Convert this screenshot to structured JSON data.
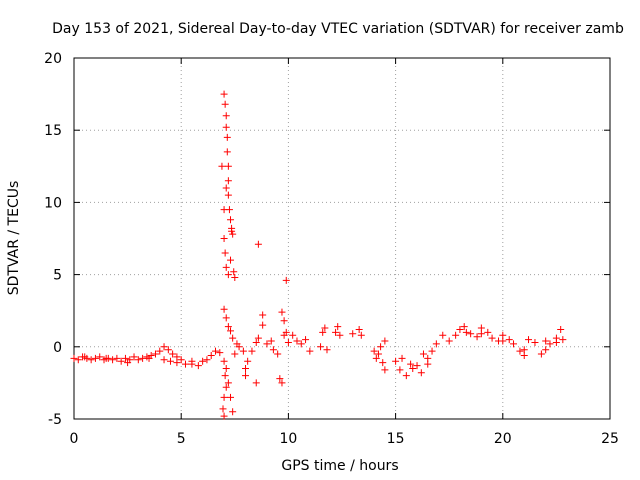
{
  "chart_data": {
    "type": "scatter",
    "title": "Day 153 of 2021, Sidereal Day-to-day VTEC variation (SDTVAR) for receiver zamb",
    "xlabel": "GPS time / hours",
    "ylabel": "SDTVAR / TECUs",
    "xlim": [
      0,
      25
    ],
    "ylim": [
      -5,
      20
    ],
    "xticks": [
      "0",
      "5",
      "10",
      "15",
      "20",
      "25"
    ],
    "yticks": [
      "-5",
      "0",
      "5",
      "10",
      "15",
      "20"
    ],
    "grid": true,
    "marker": "+",
    "color": "#ff0000",
    "series": [
      {
        "name": "SDTVAR",
        "points": [
          [
            0.0,
            -0.8
          ],
          [
            0.2,
            -0.9
          ],
          [
            0.4,
            -0.7
          ],
          [
            0.6,
            -0.8
          ],
          [
            0.8,
            -0.9
          ],
          [
            1.0,
            -0.8
          ],
          [
            1.2,
            -0.7
          ],
          [
            1.4,
            -0.9
          ],
          [
            1.6,
            -0.8
          ],
          [
            1.8,
            -0.9
          ],
          [
            2.0,
            -0.8
          ],
          [
            2.2,
            -1.0
          ],
          [
            2.4,
            -0.8
          ],
          [
            2.6,
            -0.9
          ],
          [
            2.8,
            -0.7
          ],
          [
            3.0,
            -0.9
          ],
          [
            3.2,
            -0.8
          ],
          [
            3.4,
            -0.7
          ],
          [
            3.6,
            -0.6
          ],
          [
            3.8,
            -0.5
          ],
          [
            4.0,
            -0.3
          ],
          [
            4.2,
            0.0
          ],
          [
            4.4,
            -0.2
          ],
          [
            4.6,
            -0.5
          ],
          [
            4.8,
            -0.7
          ],
          [
            5.0,
            -0.9
          ],
          [
            4.2,
            -0.9
          ],
          [
            4.5,
            -1.0
          ],
          [
            4.8,
            -1.1
          ],
          [
            5.2,
            -1.2
          ],
          [
            5.5,
            -1.2
          ],
          [
            5.8,
            -1.3
          ],
          [
            6.0,
            -1.0
          ],
          [
            6.2,
            -0.9
          ],
          [
            6.4,
            -0.6
          ],
          [
            6.6,
            -0.3
          ],
          [
            6.8,
            -0.4
          ],
          [
            0.5,
            -0.7
          ],
          [
            1.5,
            -0.8
          ],
          [
            2.5,
            -1.1
          ],
          [
            3.5,
            -0.8
          ],
          [
            5.5,
            -1.0
          ],
          [
            7.0,
            17.5
          ],
          [
            7.05,
            16.8
          ],
          [
            7.1,
            16.0
          ],
          [
            7.1,
            15.2
          ],
          [
            7.15,
            14.5
          ],
          [
            7.15,
            13.5
          ],
          [
            7.2,
            12.5
          ],
          [
            7.2,
            11.5
          ],
          [
            7.2,
            10.5
          ],
          [
            7.25,
            9.5
          ],
          [
            7.3,
            8.8
          ],
          [
            7.35,
            8.2
          ],
          [
            7.0,
            7.5
          ],
          [
            7.05,
            6.5
          ],
          [
            7.1,
            5.5
          ],
          [
            7.2,
            5.0
          ],
          [
            7.3,
            6.0
          ],
          [
            7.35,
            8.0
          ],
          [
            7.4,
            7.8
          ],
          [
            7.45,
            5.2
          ],
          [
            7.5,
            4.8
          ],
          [
            7.0,
            9.5
          ],
          [
            7.1,
            11.0
          ],
          [
            6.9,
            12.5
          ],
          [
            7.0,
            2.6
          ],
          [
            7.1,
            2.0
          ],
          [
            7.2,
            1.4
          ],
          [
            7.3,
            1.1
          ],
          [
            7.4,
            0.6
          ],
          [
            7.0,
            -1.0
          ],
          [
            7.05,
            -2.0
          ],
          [
            7.1,
            -2.8
          ],
          [
            7.0,
            -3.5
          ],
          [
            6.95,
            -4.3
          ],
          [
            7.0,
            -4.8
          ],
          [
            7.4,
            -4.5
          ],
          [
            7.3,
            -3.5
          ],
          [
            7.2,
            -2.5
          ],
          [
            7.1,
            -1.5
          ],
          [
            7.5,
            -0.5
          ],
          [
            7.6,
            0.2
          ],
          [
            7.7,
            0.0
          ],
          [
            7.9,
            -0.3
          ],
          [
            8.1,
            -1.0
          ],
          [
            8.0,
            -1.5
          ],
          [
            8.0,
            -2.0
          ],
          [
            8.5,
            -2.5
          ],
          [
            8.6,
            7.1
          ],
          [
            8.3,
            -0.3
          ],
          [
            8.5,
            0.3
          ],
          [
            8.6,
            0.6
          ],
          [
            8.8,
            1.5
          ],
          [
            8.8,
            2.2
          ],
          [
            9.0,
            0.2
          ],
          [
            9.2,
            0.4
          ],
          [
            9.3,
            -0.2
          ],
          [
            9.5,
            -0.5
          ],
          [
            9.6,
            -2.2
          ],
          [
            9.7,
            -2.5
          ],
          [
            9.8,
            0.8
          ],
          [
            9.9,
            1.0
          ],
          [
            9.7,
            2.4
          ],
          [
            9.8,
            1.8
          ],
          [
            9.9,
            4.6
          ],
          [
            10.0,
            0.3
          ],
          [
            10.2,
            0.8
          ],
          [
            10.4,
            0.4
          ],
          [
            10.6,
            0.2
          ],
          [
            10.8,
            0.5
          ],
          [
            11.0,
            -0.3
          ],
          [
            11.5,
            0.0
          ],
          [
            11.8,
            -0.2
          ],
          [
            11.6,
            1.0
          ],
          [
            11.7,
            1.3
          ],
          [
            12.2,
            1.0
          ],
          [
            12.4,
            0.8
          ],
          [
            12.3,
            1.4
          ],
          [
            13.0,
            0.9
          ],
          [
            13.3,
            1.2
          ],
          [
            13.4,
            0.8
          ],
          [
            14.0,
            -0.3
          ],
          [
            14.1,
            -0.8
          ],
          [
            14.2,
            -0.5
          ],
          [
            14.3,
            0.0
          ],
          [
            14.4,
            -1.1
          ],
          [
            14.5,
            -1.6
          ],
          [
            14.5,
            0.4
          ],
          [
            15.0,
            -1.0
          ],
          [
            15.2,
            -1.6
          ],
          [
            15.5,
            -2.0
          ],
          [
            15.8,
            -1.5
          ],
          [
            16.0,
            -1.3
          ],
          [
            16.3,
            -0.5
          ],
          [
            16.5,
            -0.8
          ],
          [
            16.7,
            -0.3
          ],
          [
            16.9,
            0.2
          ],
          [
            17.2,
            0.8
          ],
          [
            17.5,
            0.4
          ],
          [
            17.8,
            0.8
          ],
          [
            18.0,
            1.2
          ],
          [
            18.3,
            1.0
          ],
          [
            18.5,
            0.9
          ],
          [
            18.8,
            0.7
          ],
          [
            19.0,
            0.9
          ],
          [
            19.3,
            1.0
          ],
          [
            19.5,
            0.6
          ],
          [
            19.8,
            0.4
          ],
          [
            20.0,
            0.8
          ],
          [
            20.3,
            0.5
          ],
          [
            20.5,
            0.2
          ],
          [
            20.8,
            -0.3
          ],
          [
            21.0,
            -0.2
          ],
          [
            21.2,
            0.5
          ],
          [
            21.5,
            0.3
          ],
          [
            21.8,
            -0.5
          ],
          [
            22.0,
            0.4
          ],
          [
            22.2,
            0.2
          ],
          [
            22.5,
            0.6
          ],
          [
            22.7,
            1.2
          ],
          [
            22.8,
            0.5
          ],
          [
            16.2,
            -1.8
          ],
          [
            16.5,
            -1.2
          ],
          [
            15.7,
            -1.2
          ],
          [
            15.3,
            -0.8
          ],
          [
            18.2,
            1.4
          ],
          [
            19.0,
            1.3
          ],
          [
            20.0,
            0.4
          ],
          [
            21.0,
            -0.6
          ],
          [
            22.0,
            -0.2
          ],
          [
            22.5,
            0.3
          ]
        ]
      }
    ]
  }
}
